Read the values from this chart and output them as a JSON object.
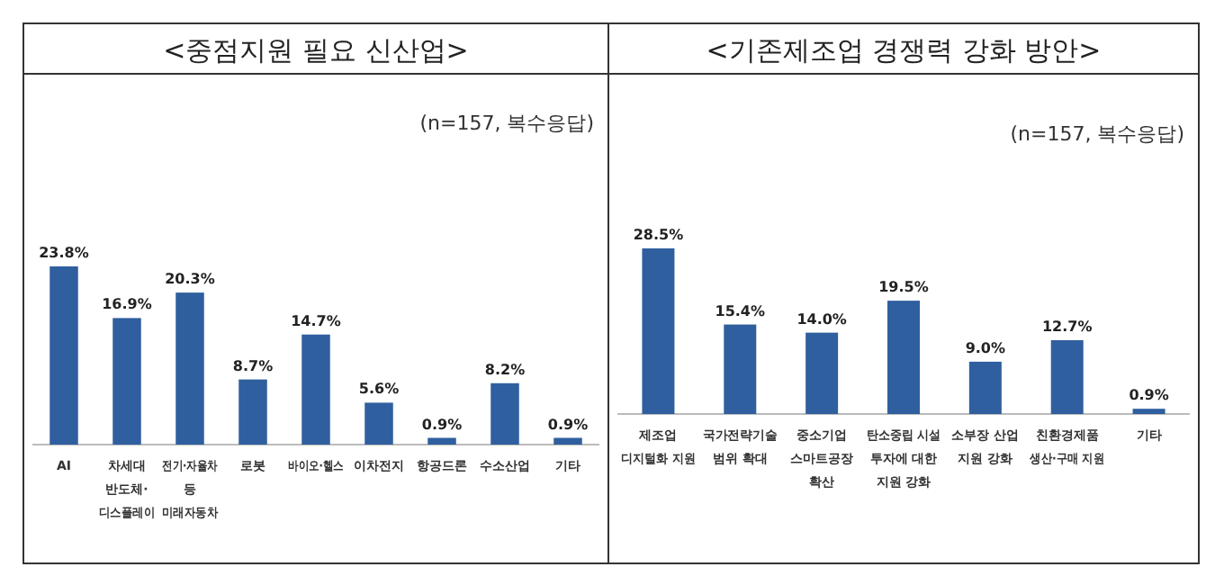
{
  "chart_data": [
    {
      "type": "bar",
      "title": "<중점지원 필요 신산업>",
      "subtitle": "(n=157, 복수응답)",
      "categories": [
        "AI",
        "차세대\n반도체·\n디스플레이",
        "전기·자율차\n등\n미래자동차",
        "로봇",
        "바이오·헬스",
        "이차전지",
        "항공드론",
        "수소산업",
        "기타"
      ],
      "values": [
        23.8,
        16.9,
        20.3,
        8.7,
        14.7,
        5.6,
        0.9,
        8.2,
        0.9
      ],
      "value_labels": [
        "23.8%",
        "16.9%",
        "20.3%",
        "8.7%",
        "14.7%",
        "5.6%",
        "0.9%",
        "8.2%",
        "0.9%"
      ],
      "color": "#2f5f9f"
    },
    {
      "type": "bar",
      "title": "<기존제조업 경쟁력 강화 방안>",
      "subtitle": "(n=157, 복수응답)",
      "categories": [
        "제조업\n디지털화 지원",
        "국가전략기술\n범위 확대",
        "중소기업\n스마트공장\n확산",
        "탄소중립 시설\n투자에 대한\n지원 강화",
        "소부장 산업\n지원 강화",
        "친환경제품\n생산·구매 지원",
        "기타"
      ],
      "values": [
        28.5,
        15.4,
        14.0,
        19.5,
        9.0,
        12.7,
        0.9
      ],
      "value_labels": [
        "28.5%",
        "15.4%",
        "14.0%",
        "19.5%",
        "9.0%",
        "12.7%",
        "0.9%"
      ],
      "color": "#2f5f9f"
    }
  ]
}
